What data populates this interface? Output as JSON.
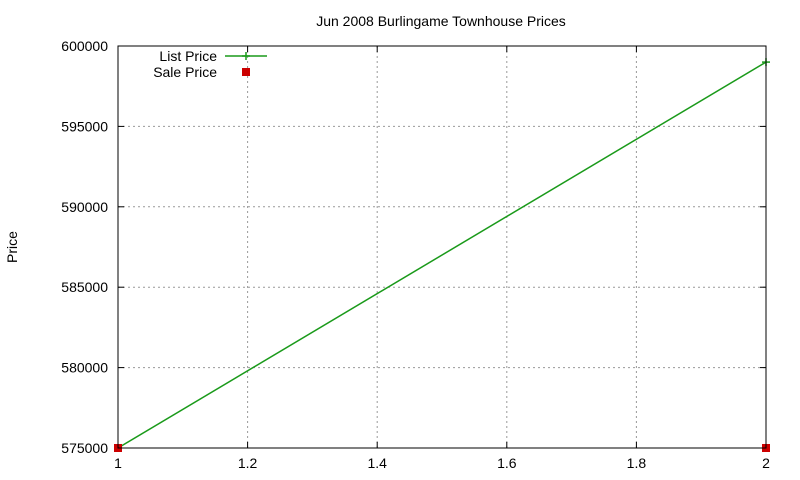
{
  "chart_data": {
    "type": "line",
    "title": "Jun 2008 Burlingame Townhouse Prices",
    "xlabel": "",
    "ylabel": "Price",
    "xlim": [
      1,
      2
    ],
    "ylim": [
      575000,
      600000
    ],
    "x_ticks": [
      "1",
      "1.2",
      "1.4",
      "1.6",
      "1.8",
      "2"
    ],
    "y_ticks": [
      "575000",
      "580000",
      "585000",
      "590000",
      "595000",
      "600000"
    ],
    "grid": true,
    "legend_position": "top-left",
    "series": [
      {
        "name": "List Price",
        "style": "lines+points",
        "marker": "plus",
        "color": "#1a9a1a",
        "x": [
          1,
          2
        ],
        "y": [
          575000,
          599000
        ]
      },
      {
        "name": "Sale Price",
        "style": "points",
        "marker": "square",
        "color": "#cc0000",
        "x": [
          1,
          2
        ],
        "y": [
          575000,
          575000
        ]
      }
    ]
  }
}
